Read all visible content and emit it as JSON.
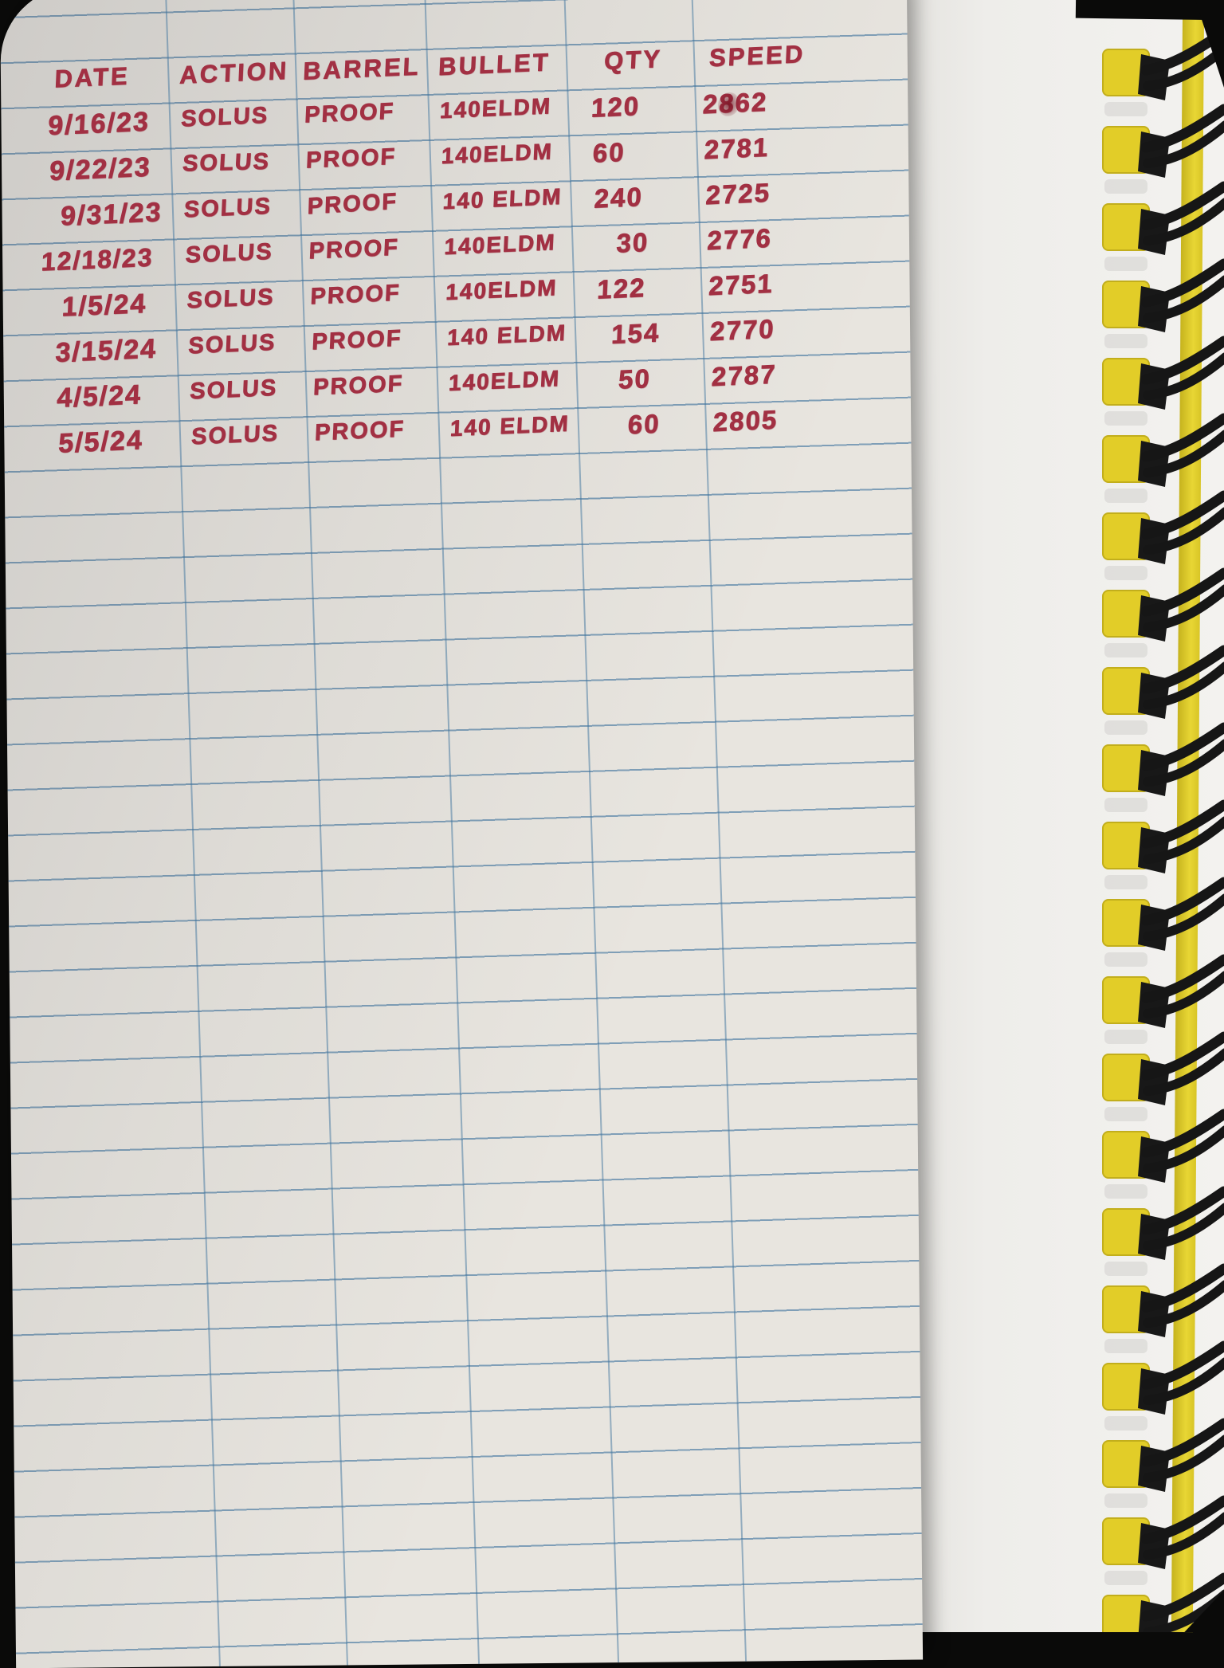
{
  "notebook_page": {
    "description": "photo-of-handwritten-reloading-log",
    "table": {
      "headers": [
        "DATE",
        "ACTION",
        "BARREL",
        "BULLET",
        "QTY",
        "SPEED"
      ],
      "rows": [
        [
          "9/16/23",
          "SOLUS",
          "PROOF",
          "140ELDM",
          "120",
          "2862"
        ],
        [
          "9/22/23",
          "SOLUS",
          "PROOF",
          "140ELDM",
          "60",
          "2781"
        ],
        [
          "9/31/23",
          "SOLUS",
          "PROOF",
          "140 ELDM",
          "240",
          "2725"
        ],
        [
          "12/18/23",
          "SOLUS",
          "PROOF",
          "140ELDM",
          "30",
          "2776"
        ],
        [
          "1/5/24",
          "SOLUS",
          "PROOF",
          "140ELDM",
          "122",
          "2751"
        ],
        [
          "3/15/24",
          "SOLUS",
          "PROOF",
          "140 ELDM",
          "154",
          "2770"
        ],
        [
          "4/5/24",
          "SOLUS",
          "PROOF",
          "140ELDM",
          "50",
          "2787"
        ],
        [
          "5/5/24",
          "SOLUS",
          "PROOF",
          "140 ELDM",
          "60",
          "2805"
        ]
      ],
      "overwritten_cells": [
        [
          0,
          5
        ]
      ]
    },
    "paper": {
      "ink_color": "#a23043",
      "line_color": "#3e739e",
      "paper_color": "#e8e5df",
      "background_color": "#0a0a09",
      "empty_ruled_rows_below": 26
    },
    "binding": {
      "coil_count": 21,
      "tab_color": "#e2cd28",
      "wire_color": "#161616",
      "strip_color": "#dfca2a"
    }
  }
}
